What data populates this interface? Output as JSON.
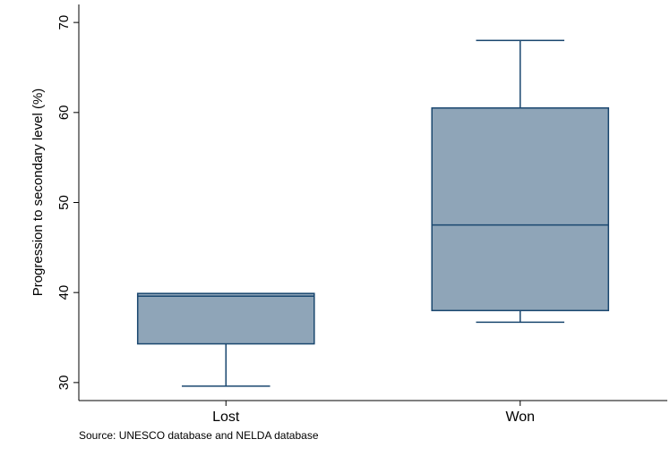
{
  "chart_data": {
    "type": "box",
    "categories": [
      "Lost",
      "Won"
    ],
    "boxes": [
      {
        "category": "Lost",
        "whisker_low": 29.6,
        "q1": 34.3,
        "median": 39.6,
        "q3": 39.9,
        "whisker_high": 39.9
      },
      {
        "category": "Won",
        "whisker_low": 36.7,
        "q1": 38.0,
        "median": 47.5,
        "q3": 60.5,
        "whisker_high": 68.0
      }
    ],
    "ylabel": "Progression to secondary level (%)",
    "xlabel": "",
    "ylim": [
      28,
      72
    ],
    "yticks": [
      30,
      40,
      50,
      60,
      70
    ],
    "ytick_labels": [
      "30",
      "40",
      "50",
      "60",
      "70"
    ],
    "grid": false,
    "note": "Source: UNESCO database and NELDA database",
    "colors": {
      "box_fill": "#8fa5b8",
      "box_stroke": "#1a476f",
      "axis": "#000000"
    }
  }
}
